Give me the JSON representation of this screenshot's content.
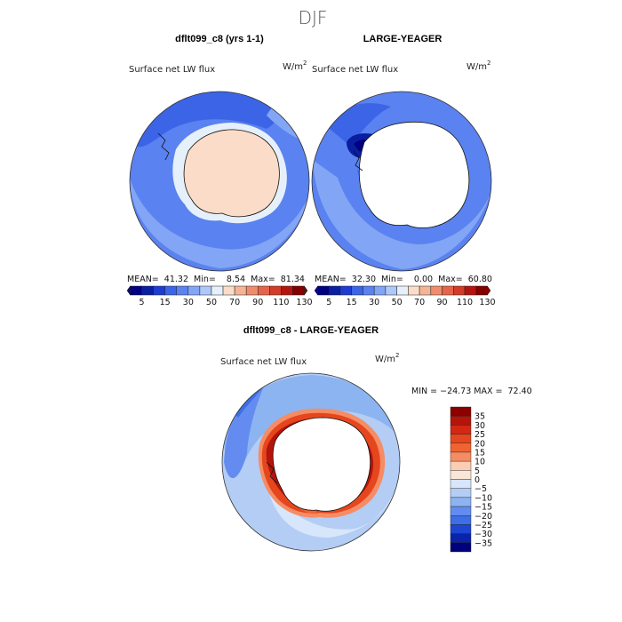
{
  "figure_title": "DJF",
  "panels": [
    {
      "title": "dflt099_c8 (yrs 1-1)",
      "subtitle": "Surface net LW flux",
      "units_base": "W/m",
      "units_exp": "2",
      "stats": "MEAN=  41.32  Min=    8.54  Max=  81.34",
      "antarctica": "land-positive"
    },
    {
      "title": "LARGE-YEAGER",
      "subtitle": "Surface net LW flux",
      "units_base": "W/m",
      "units_exp": "2",
      "stats": "MEAN=  32.30  Min=    0.00  Max=  60.80",
      "antarctica": "masked"
    },
    {
      "title": "dflt099_c8 - LARGE-YEAGER",
      "subtitle": "Surface net LW flux",
      "units_base": "W/m",
      "units_exp": "2",
      "stats": "MIN = −24.73 MAX =  72.40",
      "antarctica": "masked-difference"
    }
  ],
  "chart_data": [
    {
      "type": "heatmap",
      "projection": "south-polar-stereographic",
      "title": "dflt099_c8 (yrs 1-1)",
      "variable": "Surface net LW flux",
      "units": "W/m2",
      "mean": 41.32,
      "min": 8.54,
      "max": 81.34,
      "colorbar": {
        "orientation": "horizontal",
        "levels": [
          5,
          15,
          30,
          50,
          70,
          90,
          110,
          130
        ],
        "tick_labels": [
          "5",
          "15",
          "30",
          "50",
          "70",
          "90",
          "110",
          "130"
        ]
      }
    },
    {
      "type": "heatmap",
      "projection": "south-polar-stereographic",
      "title": "LARGE-YEAGER",
      "variable": "Surface net LW flux",
      "units": "W/m2",
      "mean": 32.3,
      "min": 0.0,
      "max": 60.8,
      "colorbar": {
        "orientation": "horizontal",
        "levels": [
          5,
          15,
          30,
          50,
          70,
          90,
          110,
          130
        ],
        "tick_labels": [
          "5",
          "15",
          "30",
          "50",
          "70",
          "90",
          "110",
          "130"
        ]
      }
    },
    {
      "type": "heatmap",
      "projection": "south-polar-stereographic",
      "title": "dflt099_c8 - LARGE-YEAGER",
      "variable": "Surface net LW flux",
      "units": "W/m2",
      "min": -24.73,
      "max": 72.4,
      "colorbar": {
        "orientation": "vertical",
        "levels": [
          35,
          30,
          25,
          20,
          15,
          10,
          5,
          0,
          -5,
          -10,
          -15,
          -20,
          -25,
          -30,
          -35
        ],
        "tick_labels": [
          "35",
          "30",
          "25",
          "20",
          "15",
          "10",
          "5",
          "0",
          "−5",
          "−10",
          "−15",
          "−20",
          "−25",
          "−30",
          "−35"
        ]
      }
    }
  ],
  "colors": {
    "abs_scale": [
      "#000080",
      "#0a1ea0",
      "#1e3cd2",
      "#3c64e6",
      "#5a82f0",
      "#82a5f5",
      "#afc8fa",
      "#e6f0fa",
      "#fadcc8",
      "#f5b496",
      "#f08c6e",
      "#e6644b",
      "#d23c28",
      "#b4140f",
      "#820000"
    ],
    "diff_scale": [
      "#8c0000",
      "#b4140a",
      "#d22814",
      "#e6461e",
      "#f06432",
      "#f58c64",
      "#facdb4",
      "#fae6d7",
      "#d7e6fa",
      "#b4cdf5",
      "#8cb4f0",
      "#648cf0",
      "#3c6ee6",
      "#1e46d2",
      "#0a23aa",
      "#00007d"
    ],
    "ocean_deep": "#3c64e6",
    "ocean_mid": "#5a82f0",
    "ocean_light": "#82a5f5",
    "ocean_pale": "#afc8fa",
    "land_warm": "#fadcc8",
    "land_edge": "#e6f0fa",
    "hot": "#e6461e",
    "hot_dark": "#b4140a",
    "hot_pale": "#f58c64"
  }
}
